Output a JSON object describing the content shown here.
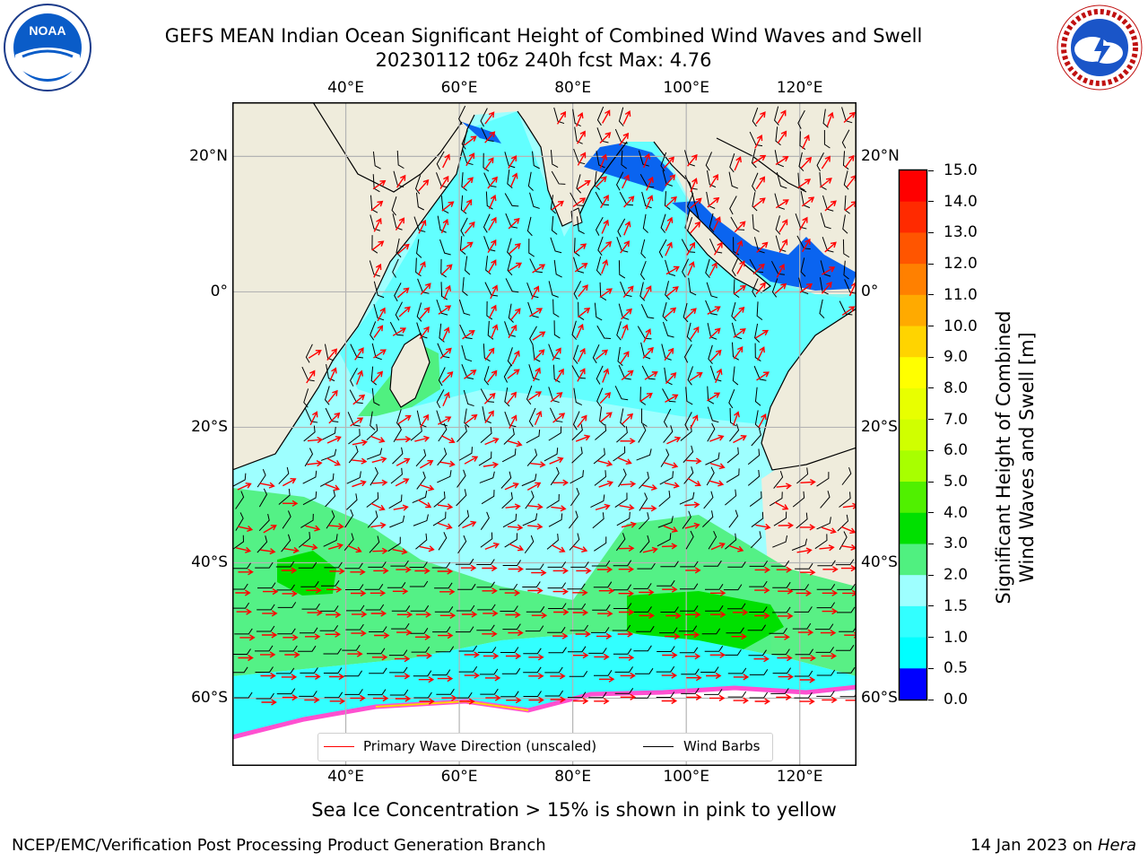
{
  "header": {
    "title_line1": "GEFS MEAN Indian Ocean Significant Height of Combined Wind Waves and Swell",
    "title_line2": "20230112 t06z 240h fcst   Max: 4.76"
  },
  "logos": {
    "left": {
      "name": "NOAA",
      "text": "NOAA"
    },
    "right": {
      "name": "National Weather Service",
      "text": "NATIONAL WEATHER SERVICE"
    }
  },
  "map": {
    "lon_ticks": [
      "40°E",
      "60°E",
      "80°E",
      "100°E",
      "120°E"
    ],
    "lat_ticks": [
      "20°N",
      "0°",
      "20°S",
      "40°S",
      "60°S"
    ],
    "lon_values": [
      40,
      60,
      80,
      100,
      120
    ],
    "lat_values": [
      20,
      0,
      -20,
      -40,
      -60
    ],
    "extent": {
      "lon_min": 20,
      "lon_max": 130,
      "lat_min": -70,
      "lat_max": 28
    },
    "colors": {
      "land": "#efecdc",
      "ocean_low": "#32ffff",
      "ocean_mid": "#9effff",
      "grid": "#b4b4b4",
      "arrow": "#ff0000",
      "barb": "#000000"
    }
  },
  "legend": {
    "wave_direction": "Primary Wave Direction (unscaled)",
    "wind_barbs": "Wind Barbs"
  },
  "colorbar": {
    "label_line1": "Significant Height of Combined",
    "label_line2": "Wind Waves and Swell [m]",
    "ticks": [
      "15.0",
      "14.0",
      "13.0",
      "12.0",
      "11.0",
      "10.0",
      "9.0",
      "8.0",
      "7.0",
      "6.0",
      "5.0",
      "4.0",
      "3.0",
      "2.0",
      "1.5",
      "1.0",
      "0.5",
      "0.0"
    ],
    "colors": [
      "#ff0000",
      "#ff2a00",
      "#ff5500",
      "#ff8000",
      "#ffaa00",
      "#ffd400",
      "#ffff00",
      "#e8ff00",
      "#d0ff00",
      "#a8ff00",
      "#50f000",
      "#00e000",
      "#50f080",
      "#9effff",
      "#32ffff",
      "#00ffff",
      "#0080ff",
      "#0000ff"
    ]
  },
  "notes": {
    "sea_ice": "Sea Ice Concentration > 15% is shown in pink to yellow"
  },
  "footer": {
    "left": "NCEP/EMC/Verification Post Processing Product Generation Branch",
    "right_prefix": "14 Jan 2023 on ",
    "right_machine": "Hera"
  }
}
